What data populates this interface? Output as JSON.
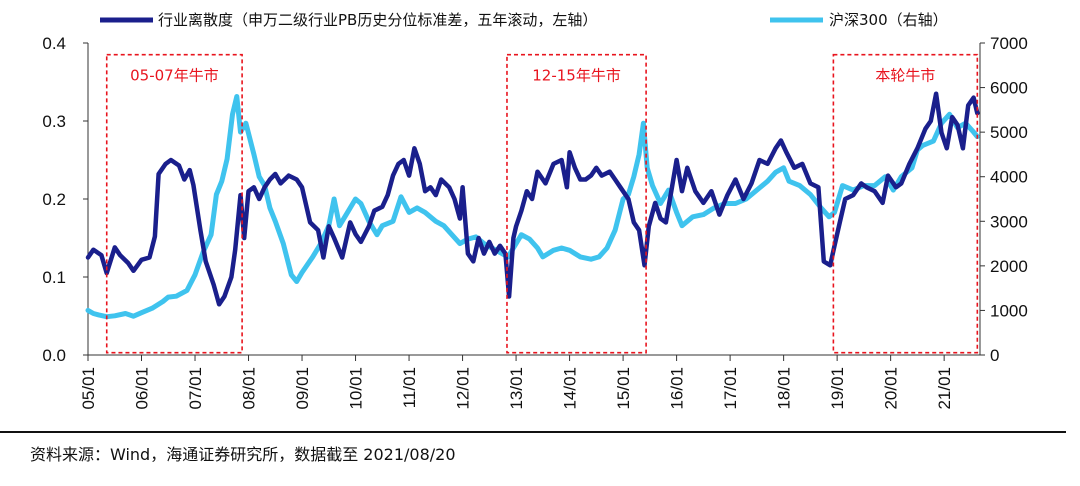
{
  "chart_data": {
    "type": "line",
    "legend": {
      "position": "top",
      "dispersion": "行业离散度（申万二级行业PB历史分位标准差，五年滚动，左轴）",
      "csi300": "沪深300（右轴）"
    },
    "left_axis": {
      "ylim": [
        0,
        0.4
      ],
      "ticks": [
        "0.0",
        "0.1",
        "0.2",
        "0.3",
        "0.4"
      ]
    },
    "right_axis": {
      "ylim": [
        0,
        7000
      ],
      "ticks": [
        "0",
        "1000",
        "2000",
        "3000",
        "4000",
        "5000",
        "6000",
        "7000"
      ]
    },
    "x_range": [
      2005.0,
      2021.67
    ],
    "x_ticks": [
      {
        "label": "05/01",
        "year": 2005
      },
      {
        "label": "06/01",
        "year": 2006
      },
      {
        "label": "07/01",
        "year": 2007
      },
      {
        "label": "08/01",
        "year": 2008
      },
      {
        "label": "09/01",
        "year": 2009
      },
      {
        "label": "10/01",
        "year": 2010
      },
      {
        "label": "11/01",
        "year": 2011
      },
      {
        "label": "12/01",
        "year": 2012
      },
      {
        "label": "13/01",
        "year": 2013
      },
      {
        "label": "14/01",
        "year": 2014
      },
      {
        "label": "15/01",
        "year": 2015
      },
      {
        "label": "16/01",
        "year": 2016
      },
      {
        "label": "17/01",
        "year": 2017
      },
      {
        "label": "18/01",
        "year": 2018
      },
      {
        "label": "19/01",
        "year": 2019
      },
      {
        "label": "20/01",
        "year": 2020
      },
      {
        "label": "21/01",
        "year": 2021
      }
    ],
    "series": [
      {
        "name": "行业离散度",
        "axis": "left",
        "color": "#1a1f8c",
        "points": [
          [
            2005.0,
            0.125
          ],
          [
            2005.1,
            0.135
          ],
          [
            2005.25,
            0.128
          ],
          [
            2005.35,
            0.105
          ],
          [
            2005.5,
            0.138
          ],
          [
            2005.6,
            0.128
          ],
          [
            2005.75,
            0.118
          ],
          [
            2005.85,
            0.108
          ],
          [
            2006.0,
            0.122
          ],
          [
            2006.15,
            0.125
          ],
          [
            2006.25,
            0.152
          ],
          [
            2006.32,
            0.232
          ],
          [
            2006.45,
            0.245
          ],
          [
            2006.55,
            0.25
          ],
          [
            2006.7,
            0.243
          ],
          [
            2006.8,
            0.225
          ],
          [
            2006.9,
            0.237
          ],
          [
            2006.97,
            0.218
          ],
          [
            2007.1,
            0.16
          ],
          [
            2007.2,
            0.12
          ],
          [
            2007.35,
            0.09
          ],
          [
            2007.45,
            0.065
          ],
          [
            2007.55,
            0.075
          ],
          [
            2007.68,
            0.1
          ],
          [
            2007.75,
            0.135
          ],
          [
            2007.85,
            0.205
          ],
          [
            2007.92,
            0.15
          ],
          [
            2008.0,
            0.21
          ],
          [
            2008.1,
            0.215
          ],
          [
            2008.2,
            0.2
          ],
          [
            2008.3,
            0.215
          ],
          [
            2008.4,
            0.225
          ],
          [
            2008.5,
            0.232
          ],
          [
            2008.6,
            0.22
          ],
          [
            2008.75,
            0.23
          ],
          [
            2008.9,
            0.225
          ],
          [
            2009.0,
            0.215
          ],
          [
            2009.15,
            0.17
          ],
          [
            2009.3,
            0.16
          ],
          [
            2009.4,
            0.125
          ],
          [
            2009.5,
            0.165
          ],
          [
            2009.6,
            0.15
          ],
          [
            2009.75,
            0.125
          ],
          [
            2009.9,
            0.17
          ],
          [
            2010.0,
            0.155
          ],
          [
            2010.1,
            0.145
          ],
          [
            2010.25,
            0.165
          ],
          [
            2010.35,
            0.185
          ],
          [
            2010.5,
            0.19
          ],
          [
            2010.6,
            0.205
          ],
          [
            2010.7,
            0.23
          ],
          [
            2010.8,
            0.245
          ],
          [
            2010.9,
            0.25
          ],
          [
            2011.0,
            0.23
          ],
          [
            2011.1,
            0.265
          ],
          [
            2011.2,
            0.245
          ],
          [
            2011.3,
            0.21
          ],
          [
            2011.4,
            0.215
          ],
          [
            2011.5,
            0.205
          ],
          [
            2011.6,
            0.225
          ],
          [
            2011.75,
            0.215
          ],
          [
            2011.85,
            0.2
          ],
          [
            2011.95,
            0.175
          ],
          [
            2012.0,
            0.215
          ],
          [
            2012.1,
            0.13
          ],
          [
            2012.2,
            0.12
          ],
          [
            2012.3,
            0.15
          ],
          [
            2012.4,
            0.13
          ],
          [
            2012.5,
            0.145
          ],
          [
            2012.6,
            0.13
          ],
          [
            2012.7,
            0.14
          ],
          [
            2012.8,
            0.13
          ],
          [
            2012.87,
            0.075
          ],
          [
            2012.95,
            0.15
          ],
          [
            2013.0,
            0.165
          ],
          [
            2013.1,
            0.185
          ],
          [
            2013.2,
            0.21
          ],
          [
            2013.3,
            0.2
          ],
          [
            2013.4,
            0.235
          ],
          [
            2013.55,
            0.22
          ],
          [
            2013.7,
            0.245
          ],
          [
            2013.85,
            0.25
          ],
          [
            2013.95,
            0.215
          ],
          [
            2014.0,
            0.26
          ],
          [
            2014.1,
            0.24
          ],
          [
            2014.2,
            0.225
          ],
          [
            2014.3,
            0.225
          ],
          [
            2014.4,
            0.23
          ],
          [
            2014.5,
            0.24
          ],
          [
            2014.6,
            0.23
          ],
          [
            2014.75,
            0.235
          ],
          [
            2014.85,
            0.225
          ],
          [
            2014.95,
            0.215
          ],
          [
            2015.1,
            0.2
          ],
          [
            2015.2,
            0.17
          ],
          [
            2015.3,
            0.16
          ],
          [
            2015.4,
            0.115
          ],
          [
            2015.48,
            0.165
          ],
          [
            2015.6,
            0.195
          ],
          [
            2015.7,
            0.175
          ],
          [
            2015.8,
            0.17
          ],
          [
            2015.9,
            0.21
          ],
          [
            2016.0,
            0.25
          ],
          [
            2016.1,
            0.21
          ],
          [
            2016.2,
            0.24
          ],
          [
            2016.35,
            0.21
          ],
          [
            2016.5,
            0.195
          ],
          [
            2016.65,
            0.21
          ],
          [
            2016.8,
            0.18
          ],
          [
            2016.95,
            0.205
          ],
          [
            2017.1,
            0.225
          ],
          [
            2017.25,
            0.2
          ],
          [
            2017.4,
            0.22
          ],
          [
            2017.55,
            0.25
          ],
          [
            2017.7,
            0.245
          ],
          [
            2017.85,
            0.265
          ],
          [
            2017.95,
            0.275
          ],
          [
            2018.05,
            0.26
          ],
          [
            2018.2,
            0.24
          ],
          [
            2018.35,
            0.245
          ],
          [
            2018.5,
            0.22
          ],
          [
            2018.65,
            0.215
          ],
          [
            2018.75,
            0.12
          ],
          [
            2018.87,
            0.115
          ],
          [
            2018.95,
            0.14
          ],
          [
            2019.05,
            0.17
          ],
          [
            2019.15,
            0.2
          ],
          [
            2019.3,
            0.205
          ],
          [
            2019.45,
            0.22
          ],
          [
            2019.55,
            0.215
          ],
          [
            2019.7,
            0.21
          ],
          [
            2019.85,
            0.195
          ],
          [
            2019.95,
            0.23
          ],
          [
            2020.1,
            0.215
          ],
          [
            2020.2,
            0.22
          ],
          [
            2020.35,
            0.245
          ],
          [
            2020.5,
            0.265
          ],
          [
            2020.65,
            0.29
          ],
          [
            2020.75,
            0.3
          ],
          [
            2020.85,
            0.335
          ],
          [
            2020.95,
            0.285
          ],
          [
            2021.05,
            0.265
          ],
          [
            2021.15,
            0.305
          ],
          [
            2021.25,
            0.295
          ],
          [
            2021.35,
            0.265
          ],
          [
            2021.45,
            0.32
          ],
          [
            2021.55,
            0.33
          ],
          [
            2021.62,
            0.31
          ]
        ]
      },
      {
        "name": "沪深300",
        "axis": "right",
        "color": "#3fc3ee",
        "points": [
          [
            2005.0,
            1000
          ],
          [
            2005.1,
            930
          ],
          [
            2005.2,
            900
          ],
          [
            2005.35,
            860
          ],
          [
            2005.5,
            880
          ],
          [
            2005.7,
            930
          ],
          [
            2005.85,
            870
          ],
          [
            2006.0,
            950
          ],
          [
            2006.2,
            1050
          ],
          [
            2006.4,
            1200
          ],
          [
            2006.5,
            1300
          ],
          [
            2006.65,
            1320
          ],
          [
            2006.85,
            1450
          ],
          [
            2007.0,
            1800
          ],
          [
            2007.15,
            2300
          ],
          [
            2007.3,
            2700
          ],
          [
            2007.4,
            3600
          ],
          [
            2007.5,
            3900
          ],
          [
            2007.6,
            4400
          ],
          [
            2007.7,
            5400
          ],
          [
            2007.78,
            5800
          ],
          [
            2007.85,
            5000
          ],
          [
            2007.95,
            5200
          ],
          [
            2008.1,
            4500
          ],
          [
            2008.2,
            4000
          ],
          [
            2008.3,
            3800
          ],
          [
            2008.4,
            3300
          ],
          [
            2008.5,
            3000
          ],
          [
            2008.65,
            2500
          ],
          [
            2008.8,
            1800
          ],
          [
            2008.9,
            1650
          ],
          [
            2009.0,
            1850
          ],
          [
            2009.2,
            2200
          ],
          [
            2009.35,
            2500
          ],
          [
            2009.5,
            2900
          ],
          [
            2009.6,
            3500
          ],
          [
            2009.7,
            2900
          ],
          [
            2009.85,
            3200
          ],
          [
            2010.0,
            3500
          ],
          [
            2010.1,
            3400
          ],
          [
            2010.25,
            3000
          ],
          [
            2010.4,
            2700
          ],
          [
            2010.5,
            2900
          ],
          [
            2010.7,
            3000
          ],
          [
            2010.85,
            3550
          ],
          [
            2011.0,
            3200
          ],
          [
            2011.15,
            3300
          ],
          [
            2011.3,
            3200
          ],
          [
            2011.5,
            3000
          ],
          [
            2011.65,
            2900
          ],
          [
            2011.8,
            2700
          ],
          [
            2011.95,
            2500
          ],
          [
            2012.1,
            2600
          ],
          [
            2012.25,
            2650
          ],
          [
            2012.4,
            2500
          ],
          [
            2012.55,
            2400
          ],
          [
            2012.7,
            2300
          ],
          [
            2012.85,
            2200
          ],
          [
            2013.0,
            2500
          ],
          [
            2013.1,
            2700
          ],
          [
            2013.25,
            2600
          ],
          [
            2013.4,
            2400
          ],
          [
            2013.5,
            2200
          ],
          [
            2013.7,
            2350
          ],
          [
            2013.85,
            2400
          ],
          [
            2014.0,
            2350
          ],
          [
            2014.2,
            2200
          ],
          [
            2014.4,
            2150
          ],
          [
            2014.55,
            2200
          ],
          [
            2014.7,
            2400
          ],
          [
            2014.85,
            2800
          ],
          [
            2015.0,
            3500
          ],
          [
            2015.1,
            3600
          ],
          [
            2015.2,
            4000
          ],
          [
            2015.3,
            4500
          ],
          [
            2015.38,
            5200
          ],
          [
            2015.45,
            4200
          ],
          [
            2015.55,
            3800
          ],
          [
            2015.7,
            3400
          ],
          [
            2015.85,
            3700
          ],
          [
            2016.0,
            3200
          ],
          [
            2016.1,
            2900
          ],
          [
            2016.3,
            3100
          ],
          [
            2016.5,
            3150
          ],
          [
            2016.7,
            3300
          ],
          [
            2016.9,
            3400
          ],
          [
            2017.1,
            3400
          ],
          [
            2017.3,
            3500
          ],
          [
            2017.5,
            3700
          ],
          [
            2017.7,
            3900
          ],
          [
            2017.85,
            4100
          ],
          [
            2018.0,
            4200
          ],
          [
            2018.1,
            3900
          ],
          [
            2018.3,
            3800
          ],
          [
            2018.5,
            3600
          ],
          [
            2018.7,
            3300
          ],
          [
            2018.85,
            3100
          ],
          [
            2018.95,
            3200
          ],
          [
            2019.1,
            3800
          ],
          [
            2019.3,
            3700
          ],
          [
            2019.5,
            3800
          ],
          [
            2019.7,
            3800
          ],
          [
            2019.9,
            4000
          ],
          [
            2020.05,
            3700
          ],
          [
            2020.2,
            4000
          ],
          [
            2020.4,
            4200
          ],
          [
            2020.5,
            4600
          ],
          [
            2020.6,
            4700
          ],
          [
            2020.8,
            4800
          ],
          [
            2020.95,
            5200
          ],
          [
            2021.1,
            5400
          ],
          [
            2021.25,
            5100
          ],
          [
            2021.4,
            5200
          ],
          [
            2021.55,
            5000
          ],
          [
            2021.62,
            4900
          ]
        ]
      }
    ],
    "annotations": [
      {
        "label": "05-07年牛市",
        "x_start": 2005.35,
        "x_end": 2007.88,
        "y_top": 0.385,
        "y_bottom": 0.003
      },
      {
        "label": "12-15年牛市",
        "x_start": 2012.83,
        "x_end": 2015.43,
        "y_top": 0.385,
        "y_bottom": 0.003
      },
      {
        "label": "本轮牛市",
        "x_start": 2018.93,
        "x_end": 2021.62,
        "y_top": 0.385,
        "y_bottom": 0.003
      }
    ]
  },
  "footer": {
    "source": "资料来源：Wind，海通证券研究所，数据截至 2021/08/20"
  },
  "colors": {
    "dispersion": "#1a1f8c",
    "csi300": "#3fc3ee",
    "annotation": "#e8141e"
  }
}
